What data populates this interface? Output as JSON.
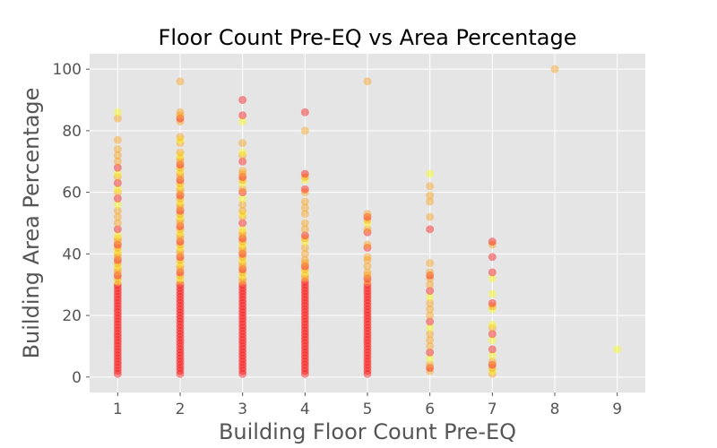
{
  "chart_data": {
    "type": "scatter",
    "title": "Floor Count Pre-EQ vs Area Percentage",
    "xlabel": "Building Floor Count Pre-EQ",
    "ylabel": "Building Area Percentage",
    "xlim": [
      0.55,
      9.45
    ],
    "ylim": [
      -5,
      105
    ],
    "x_ticks": [
      1,
      2,
      3,
      4,
      5,
      6,
      7,
      8,
      9
    ],
    "y_ticks": [
      0,
      20,
      40,
      60,
      80,
      100
    ],
    "grid": true,
    "style": "ggplot",
    "marker_opacity": 0.4,
    "colors": {
      "axes_background": "#e5e5e5",
      "grid": "#ffffff",
      "points_red": "#ff0000",
      "points_orange": "#ff9900",
      "points_yellow": "#ffff00"
    },
    "points": {
      "1": [
        1,
        2,
        3,
        4,
        5,
        6,
        7,
        8,
        9,
        10,
        11,
        12,
        13,
        14,
        15,
        16,
        17,
        18,
        19,
        20,
        21,
        22,
        23,
        24,
        25,
        26,
        27,
        28,
        29,
        30,
        31,
        32,
        33,
        34,
        35,
        36,
        37,
        38,
        39,
        40,
        41,
        42,
        43,
        44,
        45,
        46,
        48,
        50,
        52,
        54,
        56,
        58,
        60,
        61,
        63,
        65,
        66,
        68,
        70,
        72,
        74,
        77,
        84,
        86
      ],
      "2": [
        1,
        2,
        3,
        4,
        5,
        6,
        7,
        8,
        9,
        10,
        11,
        12,
        13,
        14,
        15,
        16,
        17,
        18,
        19,
        20,
        21,
        22,
        23,
        24,
        25,
        26,
        27,
        28,
        29,
        30,
        31,
        32,
        33,
        34,
        35,
        36,
        37,
        38,
        39,
        40,
        41,
        42,
        43,
        44,
        45,
        46,
        47,
        48,
        49,
        50,
        51,
        52,
        53,
        54,
        55,
        56,
        57,
        58,
        59,
        60,
        61,
        62,
        63,
        64,
        65,
        66,
        67,
        68,
        69,
        70,
        71,
        72,
        73,
        76,
        77,
        78,
        83,
        84,
        85,
        86,
        96
      ],
      "3": [
        1,
        2,
        3,
        4,
        5,
        6,
        7,
        8,
        9,
        10,
        11,
        12,
        13,
        14,
        15,
        16,
        17,
        18,
        19,
        20,
        21,
        22,
        23,
        24,
        25,
        26,
        27,
        28,
        29,
        30,
        31,
        32,
        33,
        34,
        35,
        36,
        37,
        38,
        39,
        40,
        41,
        42,
        43,
        44,
        45,
        46,
        47,
        48,
        50,
        52,
        53,
        54,
        56,
        58,
        60,
        61,
        63,
        64,
        65,
        66,
        67,
        70,
        72,
        73,
        76,
        83,
        85,
        90
      ],
      "4": [
        1,
        2,
        3,
        4,
        5,
        6,
        7,
        8,
        9,
        10,
        11,
        12,
        13,
        14,
        15,
        16,
        17,
        18,
        19,
        20,
        21,
        22,
        23,
        24,
        25,
        26,
        27,
        28,
        29,
        30,
        31,
        32,
        33,
        34,
        35,
        36,
        37,
        38,
        40,
        42,
        44,
        45,
        46,
        48,
        50,
        53,
        55,
        57,
        60,
        61,
        64,
        65,
        66,
        80,
        86
      ],
      "5": [
        1,
        2,
        3,
        4,
        5,
        6,
        7,
        8,
        9,
        10,
        11,
        12,
        13,
        14,
        15,
        16,
        17,
        18,
        19,
        20,
        21,
        22,
        23,
        24,
        25,
        26,
        27,
        28,
        29,
        30,
        31,
        32,
        33,
        34,
        36,
        38,
        39,
        42,
        43,
        47,
        48,
        50,
        51,
        52,
        53,
        96
      ],
      "6": [
        2,
        3,
        4,
        6,
        8,
        10,
        12,
        14,
        16,
        18,
        20,
        22,
        24,
        26,
        28,
        30,
        32,
        33,
        34,
        37,
        48,
        52,
        57,
        59,
        62,
        66
      ],
      "7": [
        1,
        2,
        3,
        4,
        5,
        7,
        9,
        12,
        14,
        16,
        17,
        22,
        23,
        24,
        27,
        32,
        34,
        39,
        43,
        44
      ],
      "8": [
        100
      ],
      "9": [
        9
      ]
    }
  }
}
